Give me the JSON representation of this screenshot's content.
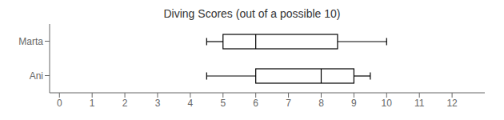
{
  "chart_data": {
    "type": "box",
    "orientation": "horizontal",
    "title": "Diving Scores (out of a possible 10)",
    "categories": [
      "Marta",
      "Ani"
    ],
    "min": [
      4.5,
      4.5
    ],
    "q1": [
      5.0,
      6.0
    ],
    "median": [
      6.0,
      8.0
    ],
    "q3": [
      8.5,
      9.0
    ],
    "max": [
      10.0,
      9.5
    ],
    "xlim": [
      -0.3,
      13.0
    ],
    "xticks": [
      0,
      1,
      2,
      3,
      4,
      5,
      6,
      7,
      8,
      9,
      10,
      11,
      12
    ],
    "color": "#000000",
    "grid": false
  }
}
